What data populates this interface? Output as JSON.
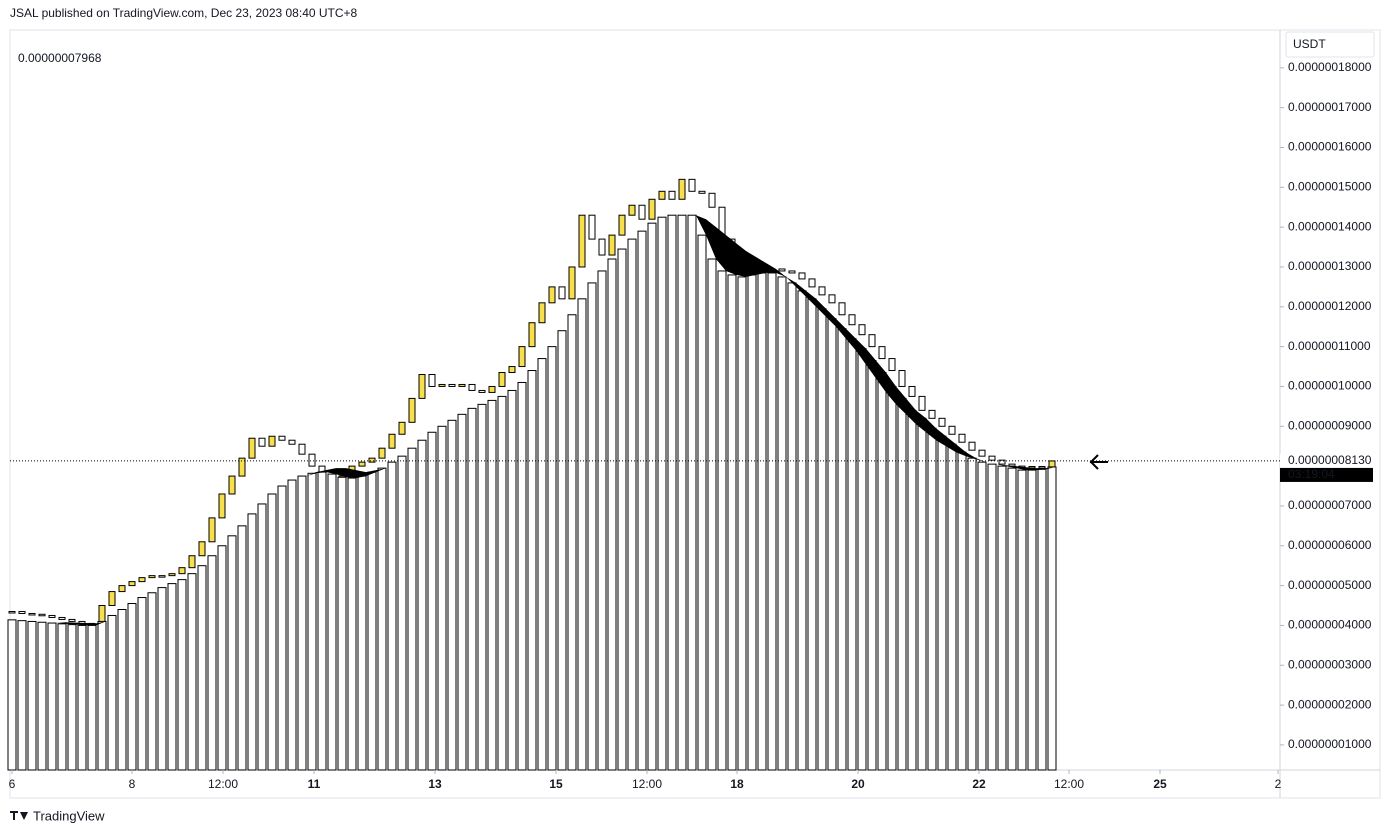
{
  "chart_data": {
    "type": "candlestick",
    "header": "JSAL published on TradingView.com, Dec 23, 2023 08:40 UTC+8",
    "legend_value": "0.00000007968",
    "currency": "USDT",
    "last_price": {
      "value": 8.13e-08,
      "label": "0.00000008130"
    },
    "countdown": "03:19:04",
    "footer": "TradingView",
    "up_color": "#f7e04b",
    "down_color": "#ffffff",
    "column_color": "#ffffff",
    "fill_color": "#000000",
    "ylim": [
      3.7e-09,
      1.895e-07
    ],
    "yticks": [
      {
        "value": 1e-08,
        "label": "0.00000001000"
      },
      {
        "value": 2e-08,
        "label": "0.00000002000"
      },
      {
        "value": 3e-08,
        "label": "0.00000003000"
      },
      {
        "value": 4e-08,
        "label": "0.00000004000"
      },
      {
        "value": 5e-08,
        "label": "0.00000005000"
      },
      {
        "value": 6e-08,
        "label": "0.00000006000"
      },
      {
        "value": 7e-08,
        "label": "0.00000007000"
      },
      {
        "value": 9e-08,
        "label": "0.00000009000"
      },
      {
        "value": 1e-07,
        "label": "0.00000010000"
      },
      {
        "value": 1.1e-07,
        "label": "0.00000011000"
      },
      {
        "value": 1.2e-07,
        "label": "0.00000012000"
      },
      {
        "value": 1.3e-07,
        "label": "0.00000013000"
      },
      {
        "value": 1.4e-07,
        "label": "0.00000014000"
      },
      {
        "value": 1.5e-07,
        "label": "0.00000015000"
      },
      {
        "value": 1.6e-07,
        "label": "0.00000016000"
      },
      {
        "value": 1.7e-07,
        "label": "0.00000017000"
      },
      {
        "value": 1.8e-07,
        "label": "0.00000018000"
      }
    ],
    "xlim": [
      -0.2,
      126.8
    ],
    "xticks": [
      {
        "value": 0,
        "label": "6"
      },
      {
        "value": 12,
        "label": "8"
      },
      {
        "value": 21.1,
        "label": "12:00"
      },
      {
        "value": 30.2,
        "label": "11"
      },
      {
        "value": 42.3,
        "label": "13"
      },
      {
        "value": 54.4,
        "label": "15"
      },
      {
        "value": 63.5,
        "label": "12:00"
      },
      {
        "value": 72.5,
        "label": "18"
      },
      {
        "value": 84.6,
        "label": "20"
      },
      {
        "value": 96.7,
        "label": "22"
      },
      {
        "value": 105.7,
        "label": "12:00"
      },
      {
        "value": 114.8,
        "label": "25"
      },
      {
        "value": 126.6,
        "label": "2"
      }
    ],
    "close": [
      4.35e-08,
      4.3e-08,
      4.28e-08,
      4.25e-08,
      4.2e-08,
      4.15e-08,
      4.1e-08,
      4.05e-08,
      4.05e-08,
      4.5e-08,
      4.85e-08,
      5e-08,
      5.1e-08,
      5.2e-08,
      5.25e-08,
      5.25e-08,
      5.3e-08,
      5.45e-08,
      5.75e-08,
      6.1e-08,
      6.7e-08,
      7.3e-08,
      7.75e-08,
      8.2e-08,
      8.7e-08,
      8.5e-08,
      8.75e-08,
      8.65e-08,
      8.55e-08,
      8.3e-08,
      8e-08,
      7.75e-08,
      7.7e-08,
      7.75e-08,
      8e-08,
      8.1e-08,
      8.2e-08,
      8.45e-08,
      8.8e-08,
      9.1e-08,
      9.7e-08,
      1.03e-07,
      1e-07,
      1.005e-07,
      1e-07,
      1.005e-07,
      9.9e-08,
      9.85e-08,
      1e-07,
      1.035e-07,
      1.05e-07,
      1.1e-07,
      1.16e-07,
      1.21e-07,
      1.25e-07,
      1.22e-07,
      1.3e-07,
      1.43e-07,
      1.37e-07,
      1.33e-07,
      1.38e-07,
      1.43e-07,
      1.455e-07,
      1.42e-07,
      1.47e-07,
      1.49e-07,
      1.47e-07,
      1.52e-07,
      1.49e-07,
      1.485e-07,
      1.45e-07,
      1.37e-07,
      1.31e-07,
      1.29e-07,
      1.29e-07,
      1.29e-07,
      1.295e-07,
      1.29e-07,
      1.285e-07,
      1.27e-07,
      1.25e-07,
      1.23e-07,
      1.21e-07,
      1.18e-07,
      1.155e-07,
      1.13e-07,
      1.1e-07,
      1.07e-07,
      1.04e-07,
      1e-07,
      9.75e-08,
      9.4e-08,
      9.2e-08,
      9e-08,
      8.8e-08,
      8.6e-08,
      8.4e-08,
      8.25e-08,
      8.15e-08,
      8.05e-08,
      8e-08,
      7.98e-08,
      7.99e-08,
      7.97e-08,
      8.13e-08
    ],
    "columns": [
      4.14e-08,
      4.12e-08,
      4.1e-08,
      4.08e-08,
      4.06e-08,
      4.04e-08,
      4.02e-08,
      4e-08,
      4e-08,
      4.1e-08,
      4.25e-08,
      4.4e-08,
      4.55e-08,
      4.7e-08,
      4.82e-08,
      4.95e-08,
      5.05e-08,
      5.15e-08,
      5.3e-08,
      5.5e-08,
      5.75e-08,
      6e-08,
      6.25e-08,
      6.5e-08,
      6.8e-08,
      7.05e-08,
      7.3e-08,
      7.5e-08,
      7.65e-08,
      7.75e-08,
      7.82e-08,
      7.85e-08,
      7.8e-08,
      7.72e-08,
      7.7e-08,
      7.75e-08,
      7.85e-08,
      7.95e-08,
      8.1e-08,
      8.25e-08,
      8.45e-08,
      8.65e-08,
      8.85e-08,
      9e-08,
      9.15e-08,
      9.3e-08,
      9.45e-08,
      9.55e-08,
      9.65e-08,
      9.75e-08,
      9.9e-08,
      1.01e-07,
      1.04e-07,
      1.07e-07,
      1.1e-07,
      1.14e-07,
      1.18e-07,
      1.22e-07,
      1.26e-07,
      1.29e-07,
      1.32e-07,
      1.345e-07,
      1.37e-07,
      1.39e-07,
      1.41e-07,
      1.425e-07,
      1.43e-07,
      1.43e-07,
      1.43e-07,
      1.38e-07,
      1.32e-07,
      1.29e-07,
      1.28e-07,
      1.275e-07,
      1.28e-07,
      1.285e-07,
      1.285e-07,
      1.275e-07,
      1.26e-07,
      1.24e-07,
      1.22e-07,
      1.195e-07,
      1.17e-07,
      1.145e-07,
      1.12e-07,
      1.095e-07,
      1.065e-07,
      1.035e-07,
      1e-07,
      9.7e-08,
      9.4e-08,
      9.2e-08,
      8.95e-08,
      8.75e-08,
      8.55e-08,
      8.35e-08,
      8.2e-08,
      8.1e-08,
      8.05e-08,
      8e-08,
      7.95e-08,
      7.9e-08,
      7.9e-08,
      7.92e-08,
      7.98e-08
    ],
    "signal": [
      4.14e-08,
      4.12e-08,
      4.1e-08,
      4.08e-08,
      4.06e-08,
      4.08e-08,
      4.07e-08,
      4.06e-08,
      4.05e-08,
      4.1e-08,
      4.25e-08,
      4.4e-08,
      4.55e-08,
      4.7e-08,
      4.82e-08,
      4.95e-08,
      5.05e-08,
      5.15e-08,
      5.3e-08,
      5.5e-08,
      5.75e-08,
      6e-08,
      6.25e-08,
      6.5e-08,
      6.8e-08,
      7.05e-08,
      7.3e-08,
      7.5e-08,
      7.65e-08,
      7.75e-08,
      7.85e-08,
      7.9e-08,
      7.95e-08,
      7.95e-08,
      7.9e-08,
      7.85e-08,
      7.9e-08,
      7.95e-08,
      8.1e-08,
      8.25e-08,
      8.45e-08,
      8.65e-08,
      8.85e-08,
      9e-08,
      9.15e-08,
      9.3e-08,
      9.45e-08,
      9.55e-08,
      9.65e-08,
      9.75e-08,
      9.9e-08,
      1.01e-07,
      1.04e-07,
      1.07e-07,
      1.1e-07,
      1.14e-07,
      1.18e-07,
      1.22e-07,
      1.26e-07,
      1.29e-07,
      1.32e-07,
      1.345e-07,
      1.37e-07,
      1.39e-07,
      1.41e-07,
      1.425e-07,
      1.43e-07,
      1.43e-07,
      1.43e-07,
      1.42e-07,
      1.4e-07,
      1.38e-07,
      1.36e-07,
      1.34e-07,
      1.325e-07,
      1.31e-07,
      1.295e-07,
      1.275e-07,
      1.25e-07,
      1.225e-07,
      1.2e-07,
      1.175e-07,
      1.15e-07,
      1.12e-07,
      1.09e-07,
      1.055e-07,
      1.02e-07,
      9.85e-08,
      9.55e-08,
      9.3e-08,
      9.05e-08,
      8.85e-08,
      8.65e-08,
      8.5e-08,
      8.35e-08,
      8.25e-08,
      8.17e-08,
      8.1e-08,
      8.05e-08,
      8.02e-08,
      8e-08,
      7.97e-08,
      7.95e-08,
      7.95e-08,
      7.98e-08
    ]
  }
}
